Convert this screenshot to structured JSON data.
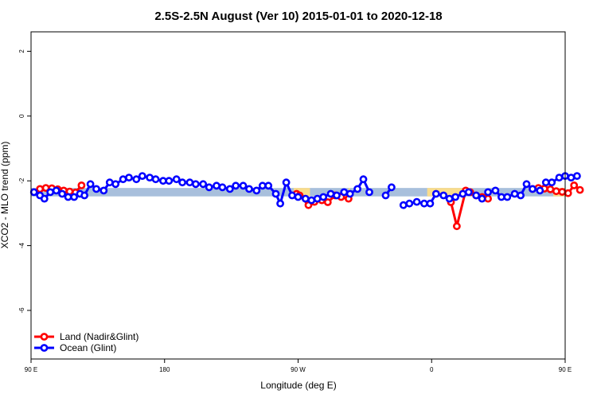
{
  "chart_data": {
    "type": "line",
    "title": "2.5S-2.5N August (Ver 10)   2015-01-01 to 2020-12-18",
    "xlabel": "Longitude (deg E)",
    "ylabel": "XCO2 - MLO trend (ppm)",
    "xlim": [
      90,
      450
    ],
    "ylim": [
      -7.5,
      2.6
    ],
    "x_ticks": [
      90,
      180,
      270,
      360,
      450,
      540
    ],
    "x_tick_labels": [
      "90 E",
      "180",
      "90 W",
      "0",
      "90 E",
      "180"
    ],
    "y_ticks": [
      -6,
      -4,
      -2,
      0,
      2
    ],
    "y_tick_labels": [
      "-6",
      "-4",
      "-2",
      "0",
      "2"
    ],
    "bands": [
      {
        "name": "ocean-band",
        "y_low": -2.48,
        "y_high": -2.22,
        "color": "#a8bfdc"
      },
      {
        "name": "land-band",
        "y_low": -2.48,
        "y_high": -2.22,
        "color": "#f9dc8c",
        "segments": [
          [
            267,
            278
          ],
          [
            304,
            305
          ],
          [
            357,
            382
          ],
          [
            442,
            450
          ]
        ]
      }
    ],
    "series": [
      {
        "name": "Land (Nadir&Glint)",
        "color": "#ff0000",
        "segments": [
          [
            [
              96,
              -2.25
            ],
            [
              100,
              -2.22
            ],
            [
              104,
              -2.23
            ],
            [
              108,
              -2.26
            ],
            [
              112,
              -2.3
            ],
            [
              116,
              -2.33
            ],
            [
              120,
              -2.36
            ],
            [
              124,
              -2.14
            ]
          ],
          [
            [
              269,
              -2.4
            ],
            [
              271,
              -2.45
            ],
            [
              277,
              -2.75
            ],
            [
              281,
              -2.65
            ],
            [
              286,
              -2.6
            ],
            [
              290,
              -2.66
            ],
            [
              295,
              -2.45
            ],
            [
              299,
              -2.5
            ],
            [
              304,
              -2.55
            ]
          ],
          [
            [
              373,
              -2.66
            ],
            [
              377,
              -3.4
            ],
            [
              383,
              -2.3
            ],
            [
              386,
              -2.35
            ],
            [
              390,
              -2.45
            ],
            [
              394,
              -2.5
            ],
            [
              398,
              -2.55
            ]
          ],
          [
            [
              428,
              -2.25
            ],
            [
              432,
              -2.22
            ],
            [
              436,
              -2.24
            ],
            [
              440,
              -2.26
            ],
            [
              444,
              -2.32
            ],
            [
              448,
              -2.34
            ],
            [
              452,
              -2.38
            ],
            [
              456,
              -2.14
            ],
            [
              460,
              -2.28
            ]
          ]
        ]
      },
      {
        "name": "Ocean (Glint)",
        "color": "#0000ff",
        "segments": [
          [
            [
              92,
              -2.35
            ],
            [
              96,
              -2.45
            ],
            [
              99,
              -2.55
            ],
            [
              103,
              -2.35
            ],
            [
              107,
              -2.3
            ],
            [
              111,
              -2.4
            ],
            [
              115,
              -2.5
            ],
            [
              119,
              -2.5
            ],
            [
              123,
              -2.4
            ],
            [
              126,
              -2.45
            ],
            [
              130,
              -2.1
            ],
            [
              134,
              -2.25
            ],
            [
              139,
              -2.3
            ],
            [
              143,
              -2.05
            ],
            [
              147,
              -2.1
            ],
            [
              152,
              -1.95
            ],
            [
              156,
              -1.9
            ],
            [
              161,
              -1.95
            ],
            [
              165,
              -1.85
            ],
            [
              170,
              -1.9
            ],
            [
              174,
              -1.95
            ],
            [
              179,
              -2.0
            ],
            [
              183,
              -2.0
            ],
            [
              188,
              -1.95
            ],
            [
              192,
              -2.05
            ],
            [
              197,
              -2.05
            ],
            [
              201,
              -2.1
            ],
            [
              206,
              -2.1
            ],
            [
              210,
              -2.2
            ],
            [
              215,
              -2.15
            ],
            [
              219,
              -2.2
            ],
            [
              224,
              -2.25
            ],
            [
              228,
              -2.15
            ],
            [
              233,
              -2.15
            ],
            [
              237,
              -2.25
            ],
            [
              242,
              -2.3
            ],
            [
              246,
              -2.15
            ],
            [
              250,
              -2.15
            ],
            [
              255,
              -2.4
            ],
            [
              258,
              -2.7
            ],
            [
              262,
              -2.05
            ],
            [
              266,
              -2.45
            ],
            [
              270,
              -2.5
            ],
            [
              275,
              -2.55
            ],
            [
              279,
              -2.6
            ],
            [
              283,
              -2.55
            ],
            [
              287,
              -2.5
            ],
            [
              292,
              -2.4
            ],
            [
              296,
              -2.45
            ],
            [
              301,
              -2.35
            ],
            [
              305,
              -2.4
            ],
            [
              310,
              -2.25
            ],
            [
              314,
              -1.95
            ],
            [
              318,
              -2.35
            ]
          ],
          [
            [
              329,
              -2.45
            ],
            [
              333,
              -2.2
            ]
          ],
          [
            [
              341,
              -2.75
            ],
            [
              345,
              -2.7
            ],
            [
              350,
              -2.65
            ],
            [
              355,
              -2.7
            ],
            [
              359,
              -2.7
            ],
            [
              363,
              -2.4
            ],
            [
              368,
              -2.45
            ],
            [
              372,
              -2.55
            ],
            [
              376,
              -2.5
            ],
            [
              381,
              -2.4
            ],
            [
              385,
              -2.35
            ],
            [
              390,
              -2.45
            ],
            [
              394,
              -2.55
            ],
            [
              398,
              -2.35
            ],
            [
              403,
              -2.3
            ],
            [
              407,
              -2.5
            ],
            [
              411,
              -2.5
            ],
            [
              416,
              -2.4
            ],
            [
              420,
              -2.45
            ],
            [
              424,
              -2.1
            ],
            [
              428,
              -2.25
            ],
            [
              433,
              -2.3
            ],
            [
              437,
              -2.05
            ],
            [
              441,
              -2.05
            ],
            [
              446,
              -1.9
            ],
            [
              450,
              -1.85
            ],
            [
              454,
              -1.9
            ],
            [
              458,
              -1.85
            ]
          ]
        ]
      }
    ],
    "legend": {
      "position": "bottom-left",
      "entries": [
        {
          "label": "Land (Nadir&Glint)",
          "color": "#ff0000"
        },
        {
          "label": "Ocean (Glint)",
          "color": "#0000ff"
        }
      ]
    }
  }
}
